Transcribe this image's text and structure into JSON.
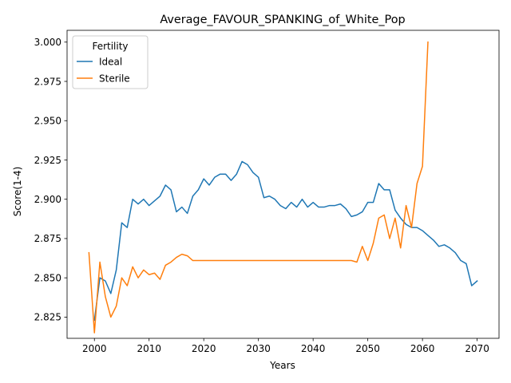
{
  "chart_data": {
    "type": "line",
    "title": "Average_FAVOUR_SPANKING_of_White_Pop",
    "xlabel": "Years",
    "ylabel": "Score(1-4)",
    "xlim": [
      1995,
      2074
    ],
    "ylim": [
      2.8115,
      3.0075
    ],
    "xticks": [
      2000,
      2010,
      2020,
      2030,
      2040,
      2050,
      2060,
      2070
    ],
    "yticks": [
      2.825,
      2.85,
      2.875,
      2.9,
      2.925,
      2.95,
      2.975,
      3.0
    ],
    "ytick_labels": [
      "2.825",
      "2.850",
      "2.875",
      "2.900",
      "2.925",
      "2.950",
      "2.975",
      "3.000"
    ],
    "grid": false,
    "legend": {
      "title": "Fertility",
      "position": "top-left"
    },
    "series": [
      {
        "name": "Ideal",
        "color": "#1f77b4",
        "x": [
          2000,
          2001,
          2002,
          2003,
          2004,
          2005,
          2006,
          2007,
          2008,
          2009,
          2010,
          2011,
          2012,
          2013,
          2014,
          2015,
          2016,
          2017,
          2018,
          2019,
          2020,
          2021,
          2022,
          2023,
          2024,
          2025,
          2026,
          2027,
          2028,
          2029,
          2030,
          2031,
          2032,
          2033,
          2034,
          2035,
          2036,
          2037,
          2038,
          2039,
          2040,
          2041,
          2042,
          2043,
          2044,
          2045,
          2046,
          2047,
          2048,
          2049,
          2050,
          2051,
          2052,
          2053,
          2054,
          2055,
          2056,
          2057,
          2058,
          2059,
          2060,
          2061,
          2062,
          2063,
          2064,
          2065,
          2066,
          2067,
          2068,
          2069,
          2070
        ],
        "values": [
          2.823,
          2.85,
          2.848,
          2.84,
          2.855,
          2.885,
          2.882,
          2.9,
          2.897,
          2.9,
          2.896,
          2.899,
          2.902,
          2.909,
          2.906,
          2.892,
          2.895,
          2.891,
          2.902,
          2.906,
          2.913,
          2.909,
          2.914,
          2.916,
          2.916,
          2.912,
          2.916,
          2.924,
          2.922,
          2.917,
          2.914,
          2.901,
          2.902,
          2.9,
          2.896,
          2.894,
          2.898,
          2.895,
          2.9,
          2.895,
          2.898,
          2.895,
          2.895,
          2.896,
          2.896,
          2.897,
          2.894,
          2.889,
          2.89,
          2.892,
          2.898,
          2.898,
          2.91,
          2.906,
          2.906,
          2.893,
          2.888,
          2.884,
          2.882,
          2.882,
          2.88,
          2.877,
          2.874,
          2.87,
          2.871,
          2.869,
          2.866,
          2.861,
          2.859,
          2.845,
          2.848
        ]
      },
      {
        "name": "Sterile",
        "color": "#ff7f0e",
        "x": [
          1999,
          2000,
          2001,
          2002,
          2003,
          2004,
          2005,
          2006,
          2007,
          2008,
          2009,
          2010,
          2011,
          2012,
          2013,
          2014,
          2015,
          2016,
          2017,
          2018,
          2019,
          2020,
          2021,
          2022,
          2023,
          2024,
          2025,
          2026,
          2027,
          2028,
          2029,
          2030,
          2031,
          2032,
          2033,
          2034,
          2035,
          2036,
          2037,
          2038,
          2039,
          2040,
          2041,
          2042,
          2043,
          2044,
          2045,
          2046,
          2047,
          2048,
          2049,
          2050,
          2051,
          2052,
          2053,
          2054,
          2055,
          2056,
          2057,
          2058,
          2059,
          2060,
          2061
        ],
        "values": [
          2.866,
          2.815,
          2.86,
          2.838,
          2.825,
          2.832,
          2.85,
          2.845,
          2.857,
          2.85,
          2.855,
          2.852,
          2.853,
          2.849,
          2.858,
          2.86,
          2.863,
          2.865,
          2.864,
          2.861,
          2.861,
          2.861,
          2.861,
          2.861,
          2.861,
          2.861,
          2.861,
          2.861,
          2.861,
          2.861,
          2.861,
          2.861,
          2.861,
          2.861,
          2.861,
          2.861,
          2.861,
          2.861,
          2.861,
          2.861,
          2.861,
          2.861,
          2.861,
          2.861,
          2.861,
          2.861,
          2.861,
          2.861,
          2.861,
          2.86,
          2.87,
          2.861,
          2.872,
          2.888,
          2.89,
          2.875,
          2.888,
          2.869,
          2.896,
          2.882,
          2.91,
          2.921,
          3.0
        ]
      }
    ]
  }
}
